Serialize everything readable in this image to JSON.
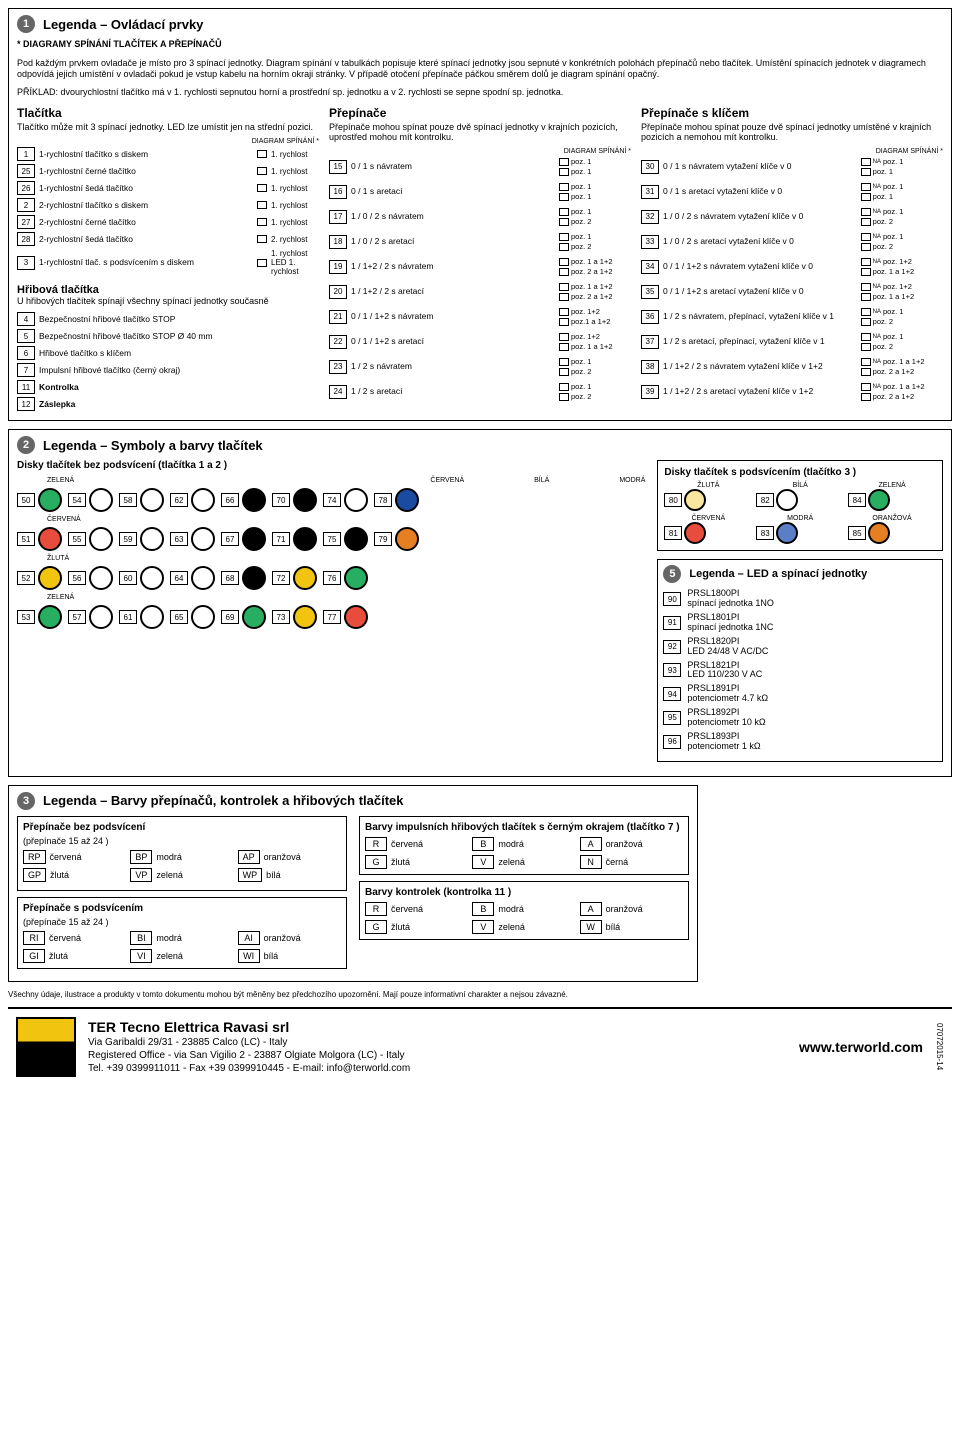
{
  "section1": {
    "num": "1",
    "title": "Legenda – Ovládací prvky",
    "heading": "* DIAGRAMY SPÍNÁNÍ TLAČÍTEK A PŘEPÍNAČŮ",
    "desc": "Pod každým prvkem ovladače je místo pro 3 spínací jednotky. Diagram spínání v tabulkách popisuje které spínací jednotky jsou sepnuté v konkrétních polohách přepínačů nebo tlačítek. Umístění spínacích jednotek v diagramech odpovídá jejich umístění v ovladači pokud je vstup kabelu na horním okraji stránky. V případě otočení přepínače páčkou směrem dolů je diagram spínání opačný.",
    "example": "PŘÍKLAD: dvourychlostní tlačítko má v 1. rychlosti sepnutou horní a prostřední sp. jednotku a v 2. rychlosti se sepne spodní sp. jednotka.",
    "col1": {
      "title": "Tlačítka",
      "desc": "Tlačítko může mít 3 spínací jednotky. LED lze umístit jen na střední pozici.",
      "diag": "DIAGRAM SPÍNÁNÍ *",
      "items": [
        {
          "n": "1",
          "l": "1-rychlostní tlačítko s diskem",
          "s": "1. rychlost"
        },
        {
          "n": "25",
          "l": "1-rychlostní černé tlačítko",
          "s": "1. rychlost"
        },
        {
          "n": "26",
          "l": "1-rychlostní šedá tlačítko",
          "s": "1. rychlost"
        },
        {
          "n": "2",
          "l": "2-rychlostní tlačítko s diskem",
          "s": "1. rychlost"
        },
        {
          "n": "27",
          "l": "2-rychlostní černé tlačítko",
          "s": "1. rychlost"
        },
        {
          "n": "28",
          "l": "2-rychlostní šedá tlačítko",
          "s": "2. rychlost"
        },
        {
          "n": "3",
          "l": "1-rychlostní tlač. s podsvícením s diskem",
          "s": "1. rychlost LED 1. rychlost"
        }
      ],
      "hribova_title": "Hřibová tlačítka",
      "hribova_desc": "U hřibových tlačítek spínají všechny spínací jednotky současně",
      "hribova": [
        {
          "n": "4",
          "l": "Bezpečnostní hřibové tlačítko STOP"
        },
        {
          "n": "5",
          "l": "Bezpečnostní hřibové tlačítko STOP Ø 40 mm"
        },
        {
          "n": "6",
          "l": "Hřibové tlačítko s klíčem"
        },
        {
          "n": "7",
          "l": "Impulsní hřibové tlačítko (černý okraj)"
        },
        {
          "n": "11",
          "l": "Kontrolka"
        },
        {
          "n": "12",
          "l": "Záslepka"
        }
      ]
    },
    "col2": {
      "title": "Přepínače",
      "desc": "Přepínače mohou spínat pouze dvě spínací jednotky v krajních pozicích, uprostřed mohou mít kontrolku.",
      "diag": "DIAGRAM SPÍNÁNÍ *",
      "items": [
        {
          "n": "15",
          "l": "0 / 1 s návratem",
          "p1": "poz. 1",
          "p2": "poz. 1"
        },
        {
          "n": "16",
          "l": "0 / 1 s aretací",
          "p1": "poz. 1",
          "p2": "poz. 1"
        },
        {
          "n": "17",
          "l": "1 / 0 / 2 s návratem",
          "p1": "poz. 1",
          "p2": "poz. 2"
        },
        {
          "n": "18",
          "l": "1 / 0 / 2 s aretací",
          "p1": "poz. 1",
          "p2": "poz. 2"
        },
        {
          "n": "19",
          "l": "1 / 1+2 / 2 s návratem",
          "p1": "poz. 1 a 1+2",
          "p2": "poz. 2 a 1+2"
        },
        {
          "n": "20",
          "l": "1 / 1+2 / 2 s aretací",
          "p1": "poz. 1 a 1+2",
          "p2": "poz. 2 a 1+2"
        },
        {
          "n": "21",
          "l": "0 / 1 / 1+2 s návratem",
          "p1": "poz. 1+2",
          "p2": "poz.1 a 1+2"
        },
        {
          "n": "22",
          "l": "0 / 1 / 1+2 s aretací",
          "p1": "poz. 1+2",
          "p2": "poz. 1 a 1+2"
        },
        {
          "n": "23",
          "l": "1 / 2 s návratem",
          "p1": "poz. 1",
          "p2": "poz. 2"
        },
        {
          "n": "24",
          "l": "1 / 2 s aretací",
          "p1": "poz. 1",
          "p2": "poz. 2"
        }
      ]
    },
    "col3": {
      "title": "Přepínače s klíčem",
      "desc": "Přepínače mohou spínat pouze dvě spínací jednotky umístěné v krajních pozicích a nemohou mít kontrolku.",
      "diag": "DIAGRAM SPÍNÁNÍ *",
      "items": [
        {
          "n": "30",
          "l": "0 / 1 s návratem vytažení klíče v 0",
          "p1": "poz. 1",
          "p2": "poz. 1"
        },
        {
          "n": "31",
          "l": "0 / 1 s aretací vytažení klíče v 0",
          "p1": "poz. 1",
          "p2": "poz. 1"
        },
        {
          "n": "32",
          "l": "1 / 0 / 2 s návratem vytažení klíče v 0",
          "p1": "poz. 1",
          "p2": "poz. 2"
        },
        {
          "n": "33",
          "l": "1 / 0 / 2 s aretací vytažení klíče v 0",
          "p1": "poz. 1",
          "p2": "poz. 2"
        },
        {
          "n": "34",
          "l": "0 / 1 / 1+2 s návratem vytažení klíče v 0",
          "p1": "poz. 1+2",
          "p2": "poz. 1 a 1+2"
        },
        {
          "n": "35",
          "l": "0 / 1 / 1+2 s aretací vytažení klíče v 0",
          "p1": "poz. 1+2",
          "p2": "poz. 1 a 1+2"
        },
        {
          "n": "36",
          "l": "1 / 2 s návratem, přepínací, vytažení klíče v 1",
          "p1": "poz. 1",
          "p2": "poz. 2"
        },
        {
          "n": "37",
          "l": "1 / 2 s aretací, přepínací, vytažení klíče v 1",
          "p1": "poz. 1",
          "p2": "poz. 2"
        },
        {
          "n": "38",
          "l": "1 / 1+2 / 2 s návratem vytažení klíče v 1+2",
          "p1": "poz. 1 a 1+2",
          "p2": "poz. 2 a 1+2"
        },
        {
          "n": "39",
          "l": "1 / 1+2 / 2 s aretací vytažení klíče v 1+2",
          "p1": "poz. 1 a 1+2",
          "p2": "poz. 2 a 1+2"
        }
      ]
    }
  },
  "section2": {
    "num": "2",
    "title": "Legenda – Symboly a barvy tlačítek",
    "disky_title": "Disky tlačítek bez podsvícení (tlačítka 1 a 2 )",
    "podsv_title": "Disky tlačítek s podsvícením (tlačítko 3 )",
    "colors": {
      "zelena": "ZELENÁ",
      "cervena": "ČERVENÁ",
      "zluta": "ŽLUTÁ",
      "modra": "MODRÁ",
      "bila": "BÍLÁ",
      "cerna": "ČERNÁ",
      "oranzova": "ORANŽOVÁ"
    },
    "row1": [
      {
        "n": "50",
        "c": "#27ae60"
      },
      {
        "n": "54",
        "c": "#fff"
      },
      {
        "n": "58",
        "c": "#fff"
      },
      {
        "n": "62",
        "c": "#fff"
      },
      {
        "n": "66",
        "c": "#000"
      },
      {
        "n": "70",
        "c": "#000"
      },
      {
        "n": "74",
        "c": "#fff"
      },
      {
        "n": "78",
        "c": "#1a4ba0"
      }
    ],
    "row2": [
      {
        "n": "51",
        "c": "#e74c3c"
      },
      {
        "n": "55",
        "c": "#fff"
      },
      {
        "n": "59",
        "c": "#fff"
      },
      {
        "n": "63",
        "c": "#fff"
      },
      {
        "n": "67",
        "c": "#000"
      },
      {
        "n": "71",
        "c": "#000"
      },
      {
        "n": "75",
        "c": "#000"
      },
      {
        "n": "79",
        "c": "#e67e22"
      }
    ],
    "row3": [
      {
        "n": "52",
        "c": "#f1c40f"
      },
      {
        "n": "56",
        "c": "#fff"
      },
      {
        "n": "60",
        "c": "#fff"
      },
      {
        "n": "64",
        "c": "#fff"
      },
      {
        "n": "68",
        "c": "#000"
      },
      {
        "n": "72",
        "c": "#f1c40f"
      },
      {
        "n": "76",
        "c": "#27ae60"
      }
    ],
    "row4": [
      {
        "n": "53",
        "c": "#27ae60"
      },
      {
        "n": "57",
        "c": "#fff"
      },
      {
        "n": "61",
        "c": "#fff"
      },
      {
        "n": "65",
        "c": "#fff"
      },
      {
        "n": "69",
        "c": "#27ae60"
      },
      {
        "n": "73",
        "c": "#f1c40f"
      },
      {
        "n": "77",
        "c": "#e74c3c"
      }
    ],
    "podsv": [
      {
        "n": "80",
        "c": "#f9e79f",
        "t": "ŽLUTÁ"
      },
      {
        "n": "82",
        "c": "#fff",
        "t": "BÍLÁ"
      },
      {
        "n": "84",
        "c": "#27ae60",
        "t": "ZELENÁ"
      },
      {
        "n": "81",
        "c": "#e74c3c",
        "t": "ČERVENÁ"
      },
      {
        "n": "83",
        "c": "#5b7fc7",
        "t": "MODRÁ"
      },
      {
        "n": "85",
        "c": "#e67e22",
        "t": "ORANŽOVÁ"
      }
    ]
  },
  "section3": {
    "num": "3",
    "title": "Legenda – Barvy přepínačů, kontrolek a hřibových tlačítek",
    "s1_title": "Přepínače bez podsvícení",
    "s1_range": "(přepínače 15 až 24 )",
    "s1_codes": [
      {
        "c": "RP",
        "l": "červená"
      },
      {
        "c": "BP",
        "l": "modrá"
      },
      {
        "c": "AP",
        "l": "oranžová"
      },
      {
        "c": "GP",
        "l": "žlutá"
      },
      {
        "c": "VP",
        "l": "zelená"
      },
      {
        "c": "WP",
        "l": "bílá"
      }
    ],
    "s2_title": "Přepínače s podsvícením",
    "s2_range": "(přepínače 15 až 24 )",
    "s2_codes": [
      {
        "c": "RI",
        "l": "červená"
      },
      {
        "c": "BI",
        "l": "modrá"
      },
      {
        "c": "AI",
        "l": "oranžová"
      },
      {
        "c": "GI",
        "l": "žlutá"
      },
      {
        "c": "VI",
        "l": "zelená"
      },
      {
        "c": "WI",
        "l": "bílá"
      }
    ],
    "s3_title": "Barvy impulsních hřibových tlačítek s černým okrajem (tlačítko 7 )",
    "s3_codes": [
      {
        "c": "R",
        "l": "červená"
      },
      {
        "c": "B",
        "l": "modrá"
      },
      {
        "c": "A",
        "l": "oranžová"
      },
      {
        "c": "G",
        "l": "žlutá"
      },
      {
        "c": "V",
        "l": "zelená"
      },
      {
        "c": "N",
        "l": "černá"
      }
    ],
    "s4_title": "Barvy kontrolek (kontrolka 11 )",
    "s4_codes": [
      {
        "c": "R",
        "l": "červená"
      },
      {
        "c": "B",
        "l": "modrá"
      },
      {
        "c": "A",
        "l": "oranžová"
      },
      {
        "c": "G",
        "l": "žlutá"
      },
      {
        "c": "V",
        "l": "zelená"
      },
      {
        "c": "W",
        "l": "bílá"
      }
    ]
  },
  "section5": {
    "num": "5",
    "title": "Legenda – LED a spínací jednotky",
    "items": [
      {
        "n": "90",
        "c": "PRSL1800PI",
        "d": "spínací jednotka 1NO"
      },
      {
        "n": "91",
        "c": "PRSL1801PI",
        "d": "spínací jednotka 1NC"
      },
      {
        "n": "92",
        "c": "PRSL1820PI",
        "d": "LED 24/48 V AC/DC"
      },
      {
        "n": "93",
        "c": "PRSL1821PI",
        "d": "LED 110/230 V AC"
      },
      {
        "n": "94",
        "c": "PRSL1891PI",
        "d": "potenciometr 4.7 kΩ"
      },
      {
        "n": "95",
        "c": "PRSL1892PI",
        "d": "potenciometr 10 kΩ"
      },
      {
        "n": "96",
        "c": "PRSL1893PI",
        "d": "potenciometr 1 kΩ"
      }
    ]
  },
  "footnote": "Všechny údaje, ilustrace a produkty v tomto dokumentu mohou být měněny bez předchozího upozornění. Mají pouze informativní charakter a nejsou závazné.",
  "footer": {
    "company": "TER Tecno Elettrica Ravasi srl",
    "addr1": "Via Garibaldi 29/31 - 23885 Calco (LC) - Italy",
    "addr2": "Registered Office - via San Vigilio 2 - 23887 Olgiate Molgora (LC) - Italy",
    "contact": "Tel. +39 0399911011 - Fax +39 0399910445 - E-mail: info@terworld.com",
    "website": "www.terworld.com",
    "code": "07072015-14"
  }
}
